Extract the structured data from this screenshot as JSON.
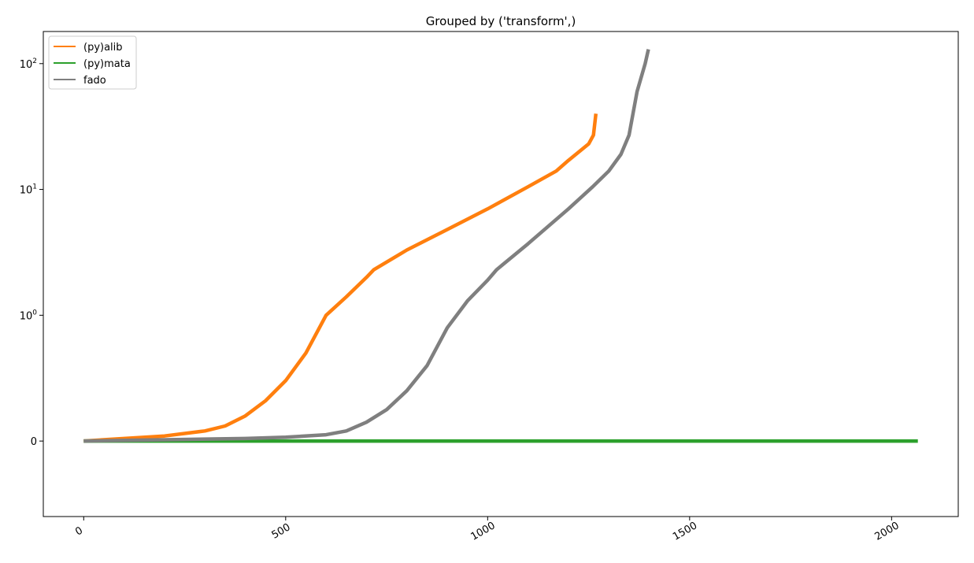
{
  "chart_data": {
    "type": "line",
    "title": "Grouped by ('transform',)",
    "xlabel": "",
    "ylabel": "",
    "yscale": "symlog",
    "xlim": [
      -100,
      2165
    ],
    "x_ticks": [
      0,
      500,
      1000,
      1500,
      2000
    ],
    "x_tick_labels": [
      "0",
      "500",
      "1000",
      "1500",
      "2000"
    ],
    "y_ticks": [
      0,
      1,
      10,
      100
    ],
    "y_tick_labels": [
      {
        "base": "0",
        "exp": ""
      },
      {
        "base": "10",
        "exp": "0"
      },
      {
        "base": "10",
        "exp": "1"
      },
      {
        "base": "10",
        "exp": "2"
      }
    ],
    "grid": false,
    "legend_position": "top-left",
    "series": [
      {
        "name": "(py)alib",
        "color": "#ff7f0e",
        "x": [
          0,
          100,
          200,
          300,
          350,
          400,
          450,
          500,
          550,
          600,
          650,
          700,
          718,
          800,
          900,
          1000,
          1100,
          1170,
          1200,
          1250,
          1262,
          1268
        ],
        "y": [
          0.0,
          0.02,
          0.04,
          0.08,
          0.12,
          0.2,
          0.32,
          0.48,
          0.7,
          1.0,
          1.4,
          2.0,
          2.3,
          3.3,
          4.8,
          7.0,
          10.5,
          14.0,
          17.0,
          23.0,
          27.0,
          40.0
        ]
      },
      {
        "name": "(py)mata",
        "color": "#2ca02c",
        "x": [
          0,
          2065
        ],
        "y": [
          0.0,
          0.0
        ]
      },
      {
        "name": "fado",
        "color": "#7f7f7f",
        "x": [
          0,
          200,
          400,
          500,
          600,
          650,
          700,
          750,
          800,
          850,
          900,
          950,
          1000,
          1022,
          1100,
          1200,
          1260,
          1300,
          1330,
          1350,
          1370,
          1390,
          1398
        ],
        "y": [
          0.0,
          0.01,
          0.02,
          0.03,
          0.05,
          0.08,
          0.15,
          0.25,
          0.4,
          0.6,
          0.9,
          1.3,
          1.9,
          2.3,
          3.7,
          7.0,
          10.5,
          14.0,
          19.0,
          27.0,
          60.0,
          100.0,
          130.0
        ]
      }
    ]
  }
}
